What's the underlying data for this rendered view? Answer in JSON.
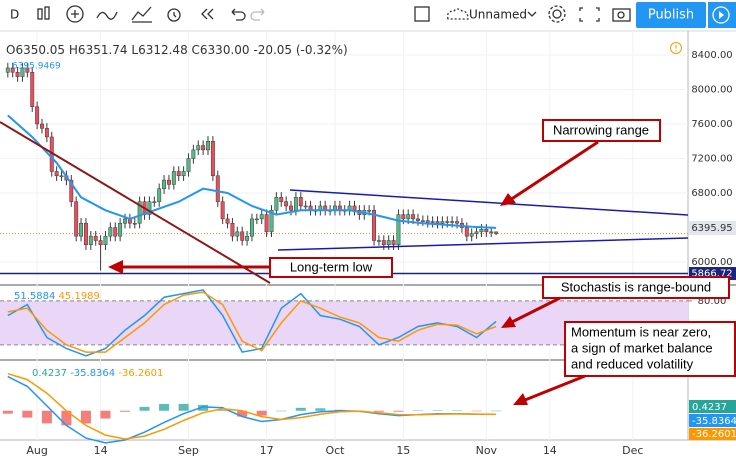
{
  "toolbar": {
    "interval": "D",
    "layout_name": "Unnamed",
    "publish": "Publish"
  },
  "chart_data": [
    {
      "type": "candlestick",
      "legend": [
        "O6350.05",
        "H6351.74",
        "L6312.48",
        "C6330.00",
        "-20.05 (-0.32%)"
      ],
      "x": [
        -6,
        -5,
        -4,
        -3,
        -2,
        -1,
        0,
        1,
        2,
        3,
        4,
        5,
        6,
        7,
        8,
        9,
        10,
        11,
        12,
        13,
        14,
        15,
        16,
        17,
        18,
        19,
        20,
        21,
        22,
        23,
        24,
        25,
        26,
        27,
        28,
        29,
        30,
        31,
        32,
        33,
        34,
        35,
        36,
        37,
        38,
        39,
        40,
        41,
        42,
        43,
        44,
        45,
        46,
        47,
        48,
        49,
        50,
        51,
        52,
        53,
        54,
        55,
        56,
        57,
        58,
        59,
        60,
        61,
        62,
        63,
        64,
        65,
        66,
        67,
        68,
        69,
        70,
        71,
        72,
        73,
        74,
        75,
        76,
        77,
        78,
        79,
        80,
        81,
        82,
        83,
        84,
        85,
        86,
        87,
        88,
        89,
        90,
        91,
        92,
        93,
        94
      ],
      "open": [
        8200,
        8250,
        8200,
        8150,
        8250,
        8200,
        7800,
        7600,
        7550,
        7450,
        7050,
        7000,
        7000,
        6950,
        6700,
        6300,
        6450,
        6200,
        6300,
        6250,
        6200,
        6300,
        6400,
        6300,
        6450,
        6500,
        6450,
        6450,
        6700,
        6550,
        6700,
        6700,
        6850,
        6950,
        6900,
        7050,
        7000,
        7050,
        7200,
        7300,
        7350,
        7300,
        7400,
        7000,
        6700,
        6500,
        6450,
        6300,
        6350,
        6250,
        6300,
        6500,
        6500,
        6550,
        6350,
        6600,
        6750,
        6700,
        6650,
        6600,
        6750,
        6650,
        6650,
        6600,
        6600,
        6650,
        6600,
        6600,
        6650,
        6600,
        6600,
        6650,
        6600,
        6550,
        6600,
        6600,
        6250,
        6250,
        6200,
        6250,
        6200,
        6550,
        6500,
        6550,
        6500,
        6480,
        6480,
        6460,
        6470,
        6450,
        6470,
        6460,
        6470,
        6450,
        6400,
        6300,
        6330,
        6350,
        6380,
        6350,
        6350.05
      ],
      "high": [
        8310,
        8310,
        8260,
        8310,
        8310,
        8260,
        7860,
        7660,
        7610,
        7510,
        7110,
        7060,
        7060,
        7010,
        6760,
        6510,
        6510,
        6360,
        6360,
        6310,
        6360,
        6460,
        6460,
        6510,
        6560,
        6560,
        6510,
        6760,
        6760,
        6760,
        6760,
        6910,
        7010,
        7010,
        7110,
        7110,
        7110,
        7260,
        7360,
        7410,
        7410,
        7460,
        7460,
        7060,
        6760,
        6560,
        6510,
        6410,
        6410,
        6360,
        6560,
        6560,
        6610,
        6610,
        6660,
        6810,
        6810,
        6760,
        6710,
        6810,
        6810,
        6710,
        6710,
        6660,
        6710,
        6710,
        6660,
        6710,
        6710,
        6660,
        6710,
        6710,
        6660,
        6660,
        6660,
        6660,
        6310,
        6310,
        6310,
        6310,
        6610,
        6610,
        6610,
        6610,
        6560,
        6540,
        6540,
        6530,
        6530,
        6530,
        6530,
        6530,
        6530,
        6510,
        6460,
        6390,
        6410,
        6440,
        6440,
        6410,
        6351.74
      ],
      "low": [
        8140,
        8140,
        8090,
        8090,
        8140,
        7740,
        7540,
        7490,
        7390,
        6990,
        6940,
        6940,
        6890,
        6640,
        6240,
        6240,
        6140,
        6140,
        6190,
        5900,
        6140,
        6240,
        6240,
        6240,
        6390,
        6390,
        6390,
        6390,
        6490,
        6490,
        6640,
        6640,
        6790,
        6840,
        6840,
        6940,
        6940,
        6990,
        7140,
        7240,
        7240,
        7240,
        6940,
        6640,
        6440,
        6390,
        6240,
        6240,
        6190,
        6190,
        6240,
        6440,
        6440,
        6290,
        6290,
        6540,
        6640,
        6590,
        6540,
        6540,
        6590,
        6590,
        6540,
        6540,
        6540,
        6540,
        6540,
        6540,
        6540,
        6540,
        6540,
        6540,
        6490,
        6490,
        6540,
        6190,
        6190,
        6140,
        6140,
        6140,
        6140,
        6440,
        6440,
        6440,
        6420,
        6420,
        6400,
        6400,
        6390,
        6390,
        6400,
        6400,
        6390,
        6340,
        6240,
        6240,
        6270,
        6290,
        6290,
        6290,
        6312.48
      ],
      "close": [
        8250,
        8200,
        8150,
        8250,
        8200,
        7800,
        7600,
        7550,
        7450,
        7050,
        7000,
        7000,
        6950,
        6700,
        6300,
        6450,
        6200,
        6300,
        6250,
        6200,
        6300,
        6400,
        6300,
        6450,
        6500,
        6450,
        6450,
        6700,
        6550,
        6700,
        6700,
        6850,
        6950,
        6900,
        7050,
        7000,
        7050,
        7200,
        7300,
        7350,
        7300,
        7400,
        7000,
        6700,
        6500,
        6450,
        6300,
        6350,
        6250,
        6300,
        6500,
        6500,
        6550,
        6350,
        6600,
        6750,
        6700,
        6650,
        6600,
        6750,
        6650,
        6650,
        6600,
        6600,
        6650,
        6600,
        6600,
        6650,
        6600,
        6600,
        6650,
        6600,
        6550,
        6600,
        6600,
        6250,
        6250,
        6200,
        6250,
        6200,
        6550,
        6500,
        6550,
        6500,
        6480,
        6480,
        6460,
        6470,
        6450,
        6470,
        6460,
        6470,
        6450,
        6400,
        6300,
        6330,
        6350,
        6380,
        6350,
        6350,
        6330
      ],
      "up_color": "#53b987",
      "down_color": "#eb4d5c",
      "xlim": [
        -7.6,
        133.3
      ],
      "xticks": [
        {
          "value": 0,
          "label": "Aug"
        },
        {
          "value": 13,
          "label": "14"
        },
        {
          "value": 31,
          "label": "Sep"
        },
        {
          "value": 47,
          "label": "17"
        },
        {
          "value": 61,
          "label": "Oct"
        },
        {
          "value": 75,
          "label": "15"
        },
        {
          "value": 92,
          "label": "Nov"
        },
        {
          "value": 105,
          "label": "14"
        },
        {
          "value": 122,
          "label": "Dec"
        }
      ],
      "ylim": [
        5757,
        8632
      ],
      "yticks": [
        {
          "value": 6000,
          "label": "6000.00"
        },
        {
          "value": 6800,
          "label": "6800.00"
        },
        {
          "value": 7200,
          "label": "7200.00"
        },
        {
          "value": 7600,
          "label": "7600.00"
        },
        {
          "value": 8000,
          "label": "8000.00"
        },
        {
          "value": 8400,
          "label": "8400.00"
        }
      ],
      "grid": true,
      "moving_average": {
        "label": "6395.9469",
        "color": "#2196f3",
        "x": [
          -6,
          -1,
          4,
          9,
          14,
          19,
          24,
          29,
          34,
          39,
          44,
          49,
          54,
          59,
          64,
          69,
          74,
          79,
          84,
          89,
          94
        ],
        "values": [
          7700,
          7450,
          7150,
          6750,
          6600,
          6500,
          6600,
          6700,
          6850,
          6800,
          6650,
          6550,
          6600,
          6600,
          6600,
          6550,
          6480,
          6450,
          6430,
          6410,
          6396
        ]
      },
      "price_labels": [
        6395.95
      ],
      "hlines": [
        5866.72
      ],
      "annotations": [
        {
          "text": "Narrowing range"
        },
        {
          "text": "Long-term low"
        }
      ]
    },
    {
      "type": "line",
      "legend": [
        "51.5884",
        "45.1989"
      ],
      "x": [
        -6,
        -2,
        2,
        6,
        10,
        14,
        18,
        22,
        26,
        30,
        34,
        38,
        42,
        46,
        50,
        54,
        58,
        62,
        66,
        70,
        74,
        78,
        82,
        86,
        90,
        94
      ],
      "series": [
        {
          "color": "#2196f3",
          "values": [
            60,
            75,
            30,
            15,
            5,
            15,
            40,
            60,
            85,
            90,
            95,
            60,
            10,
            15,
            70,
            90,
            60,
            55,
            45,
            20,
            30,
            45,
            50,
            45,
            30,
            52
          ]
        },
        {
          "color": "#ff9800",
          "values": [
            65,
            70,
            40,
            20,
            10,
            10,
            30,
            50,
            75,
            88,
            92,
            75,
            25,
            12,
            50,
            80,
            70,
            58,
            50,
            30,
            25,
            40,
            48,
            47,
            35,
            45
          ]
        }
      ],
      "ylim": [
        2,
        99
      ],
      "yticks": [
        {
          "value": 80,
          "label": "80.00"
        }
      ],
      "band": [
        20,
        80
      ],
      "band_color": "#ead7f7",
      "annotations": [
        {
          "text": "Stochastis is range-bound"
        }
      ]
    },
    {
      "type": "combo",
      "legend": [
        "0.4237",
        "-35.8364",
        "-36.2601"
      ],
      "x": [
        -6,
        -2,
        2,
        6,
        10,
        14,
        18,
        22,
        26,
        30,
        34,
        38,
        42,
        46,
        50,
        54,
        58,
        62,
        66,
        70,
        74,
        78,
        82,
        86,
        90,
        94
      ],
      "series": [
        {
          "type": "bar",
          "color": "#26a69a",
          "down_color": "#ef5350",
          "values": [
            -30,
            -70,
            -130,
            -150,
            -130,
            -80,
            -10,
            40,
            70,
            70,
            60,
            10,
            -60,
            -50,
            0,
            30,
            25,
            10,
            0,
            -10,
            -10,
            2,
            5,
            2,
            -1,
            0.4237
          ]
        },
        {
          "type": "line",
          "color": "#2196f3",
          "values": [
            350,
            250,
            50,
            -150,
            -280,
            -330,
            -300,
            -220,
            -120,
            -30,
            40,
            30,
            -60,
            -110,
            -90,
            -40,
            -10,
            0,
            -5,
            -30,
            -50,
            -40,
            -30,
            -30,
            -35,
            -35.8364
          ]
        },
        {
          "type": "line",
          "color": "#ff9800",
          "values": [
            380,
            320,
            180,
            0,
            -150,
            -250,
            -290,
            -260,
            -190,
            -100,
            -20,
            20,
            0,
            -60,
            -90,
            -70,
            -35,
            -10,
            -5,
            -20,
            -40,
            -42,
            -35,
            -32,
            -34,
            -36.2601
          ]
        }
      ],
      "ylim": [
        -300,
        500
      ],
      "annotations": [
        {
          "lines": [
            "Momentum is near zero,",
            "a sign of market balance",
            "and reduced volatility"
          ]
        }
      ]
    }
  ]
}
